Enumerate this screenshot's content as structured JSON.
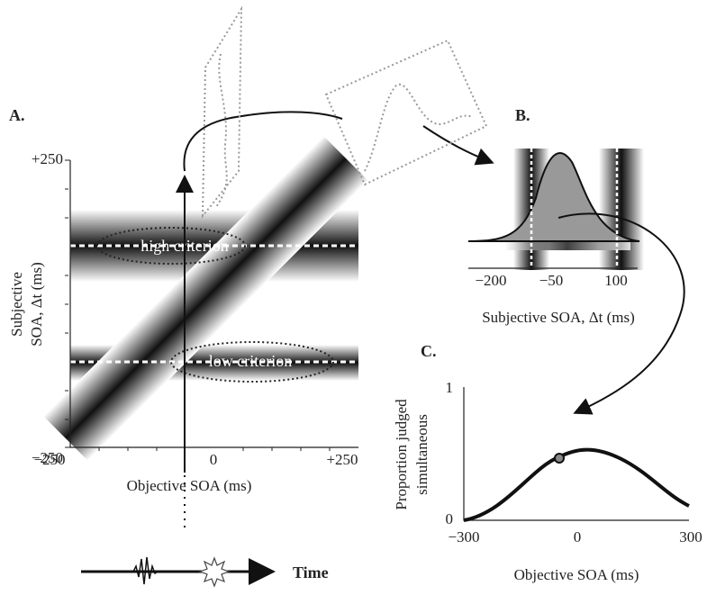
{
  "panel_a": {
    "label": "A.",
    "yticks": [
      "+250",
      "−250"
    ],
    "xticks": [
      "−250",
      "0",
      "+250"
    ],
    "ylabel": [
      "Subjective",
      "SOA, Δt (ms)"
    ],
    "xlabel": "Objective SOA (ms)",
    "annotations": [
      "high criterion",
      "low criterion"
    ]
  },
  "panel_b": {
    "label": "B.",
    "xticks": [
      "−200",
      "−50",
      "100"
    ],
    "xlabel": "Subjective SOA, Δt (ms)"
  },
  "panel_c": {
    "label": "C.",
    "yticks": [
      "1",
      "0"
    ],
    "xticks": [
      "−300",
      "0",
      "300"
    ],
    "ylabel": [
      "Proportion judged",
      "simultaneous"
    ],
    "xlabel": "Objective SOA (ms)"
  },
  "timeline": {
    "label": "Time"
  }
}
